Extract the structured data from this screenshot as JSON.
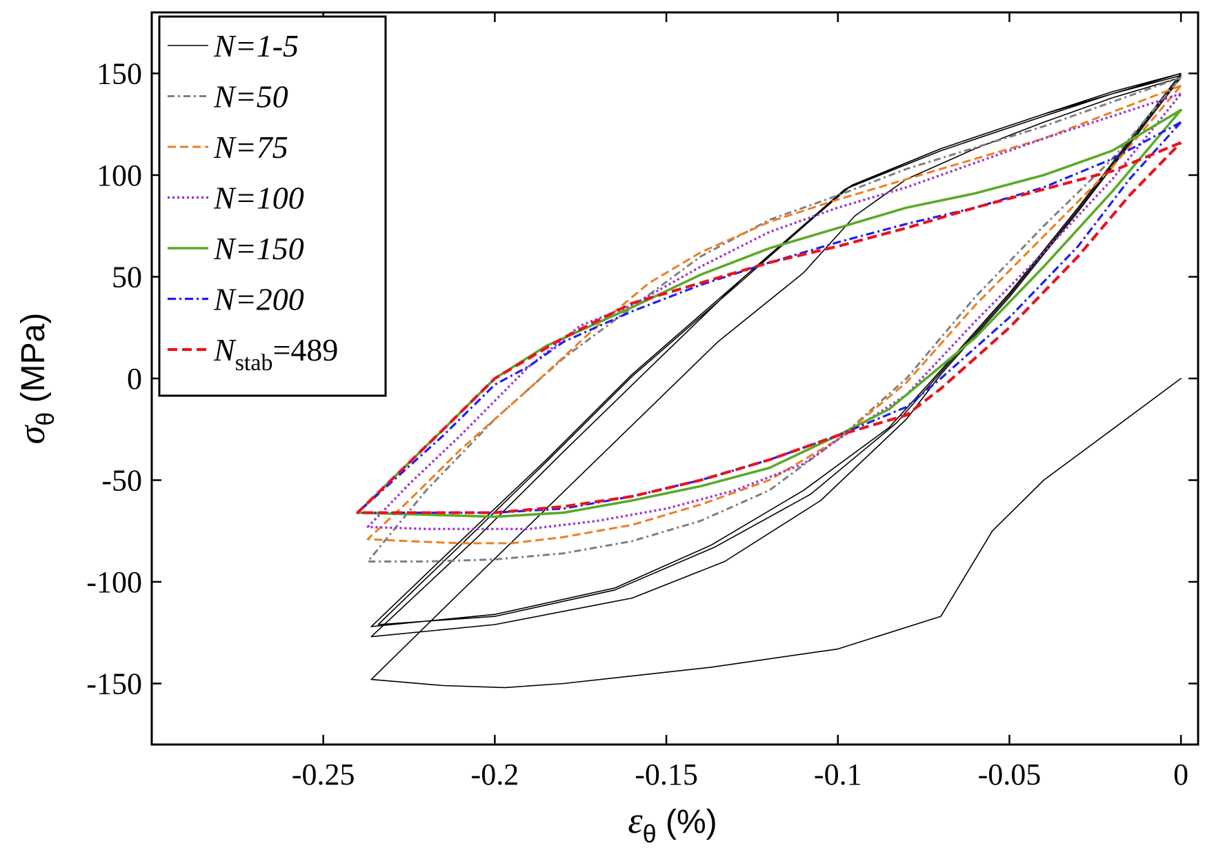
{
  "chart_data": {
    "type": "line",
    "title": "",
    "xlabel": {
      "symbol": "ε",
      "subscript": "θ",
      "unit": " (%)"
    },
    "ylabel": {
      "symbol": "σ",
      "subscript": "θ",
      "unit": " (MPa)"
    },
    "xlim": [
      -0.3,
      0.005
    ],
    "ylim": [
      -180,
      180
    ],
    "xticks": [
      -0.25,
      -0.2,
      -0.15,
      -0.1,
      -0.05,
      0
    ],
    "xtick_labels": [
      "-0.25",
      "-0.2",
      "-0.15",
      "-0.1",
      "-0.05",
      "0"
    ],
    "yticks": [
      -150,
      -100,
      -50,
      0,
      50,
      100,
      150
    ],
    "ytick_labels": [
      "-150",
      "-100",
      "-50",
      "0",
      "50",
      "100",
      "150"
    ],
    "grid": false,
    "legend_position": "top-left",
    "series": [
      {
        "name": "N=1-5",
        "label_main": "N",
        "label_sub": "",
        "label_rest": "=1-5",
        "color": "#000000",
        "dash": "",
        "width": 1.6,
        "segments": [
          [
            [
              0,
              0
            ],
            [
              -0.02,
              -25
            ],
            [
              -0.04,
              -50
            ],
            [
              -0.055,
              -75
            ],
            [
              -0.07,
              -117
            ],
            [
              -0.1,
              -133
            ],
            [
              -0.137,
              -142
            ],
            [
              -0.18,
              -150
            ],
            [
              -0.197,
              -152
            ],
            [
              -0.215,
              -151
            ],
            [
              -0.236,
              -148
            ],
            [
              -0.21,
              -105
            ],
            [
              -0.185,
              -64
            ],
            [
              -0.16,
              -23
            ],
            [
              -0.135,
              18
            ],
            [
              -0.11,
              52
            ],
            [
              -0.095,
              80
            ],
            [
              -0.08,
              98
            ],
            [
              -0.06,
              113
            ],
            [
              -0.04,
              126
            ],
            [
              -0.02,
              138
            ],
            [
              0,
              148
            ],
            [
              -0.01,
              126
            ],
            [
              -0.03,
              82
            ],
            [
              -0.05,
              40
            ],
            [
              -0.07,
              2
            ],
            [
              -0.08,
              -20
            ],
            [
              -0.105,
              -60
            ],
            [
              -0.133,
              -90
            ],
            [
              -0.16,
              -108
            ],
            [
              -0.2,
              -121
            ],
            [
              -0.236,
              -127
            ],
            [
              -0.205,
              -78
            ],
            [
              -0.18,
              -36
            ],
            [
              -0.155,
              5
            ],
            [
              -0.128,
              49
            ],
            [
              -0.096,
              95
            ],
            [
              -0.07,
              113
            ],
            [
              -0.04,
              130
            ],
            [
              -0.02,
              141
            ],
            [
              0,
              150
            ],
            [
              -0.01,
              128
            ],
            [
              -0.03,
              84
            ],
            [
              -0.05,
              42
            ],
            [
              -0.07,
              4
            ],
            [
              -0.085,
              -24
            ],
            [
              -0.11,
              -55
            ],
            [
              -0.137,
              -82
            ],
            [
              -0.165,
              -103
            ],
            [
              -0.2,
              -116
            ],
            [
              -0.236,
              -122
            ],
            [
              -0.21,
              -80
            ],
            [
              -0.185,
              -40
            ],
            [
              -0.16,
              2
            ],
            [
              -0.13,
              46
            ],
            [
              -0.098,
              93
            ],
            [
              -0.07,
              112
            ],
            [
              -0.04,
              129
            ],
            [
              -0.02,
              140
            ],
            [
              0,
              149
            ],
            [
              -0.01,
              127
            ],
            [
              -0.03,
              83
            ],
            [
              -0.05,
              41
            ],
            [
              -0.07,
              3
            ],
            [
              -0.083,
              -22
            ],
            [
              -0.108,
              -57
            ],
            [
              -0.136,
              -83
            ],
            [
              -0.165,
              -104
            ],
            [
              -0.2,
              -117
            ],
            [
              -0.234,
              -121
            ],
            [
              -0.21,
              -82
            ],
            [
              -0.185,
              -41
            ],
            [
              -0.16,
              1
            ],
            [
              -0.13,
              45
            ],
            [
              -0.097,
              94
            ],
            [
              -0.07,
              113
            ],
            [
              -0.04,
              130
            ],
            [
              0,
              150
            ]
          ]
        ]
      },
      {
        "name": "N=50",
        "label_main": "N",
        "label_sub": "",
        "label_rest": "=50",
        "color": "#7f7f7f",
        "dash": "10,5,3,5",
        "width": 3,
        "segments": [
          [
            [
              0,
              148
            ],
            [
              -0.04,
              124
            ],
            [
              -0.08,
              103
            ],
            [
              -0.1,
              90
            ],
            [
              -0.12,
              78
            ],
            [
              -0.14,
              60
            ],
            [
              -0.16,
              35
            ],
            [
              -0.18,
              10
            ],
            [
              -0.2,
              -20
            ],
            [
              -0.22,
              -55
            ],
            [
              -0.237,
              -90
            ],
            [
              -0.22,
              -90
            ],
            [
              -0.2,
              -89
            ],
            [
              -0.18,
              -86
            ],
            [
              -0.16,
              -80
            ],
            [
              -0.14,
              -70
            ],
            [
              -0.12,
              -55
            ],
            [
              -0.1,
              -30
            ],
            [
              -0.08,
              0
            ],
            [
              -0.06,
              40
            ],
            [
              -0.04,
              75
            ],
            [
              -0.02,
              108
            ],
            [
              0,
              148
            ]
          ]
        ]
      },
      {
        "name": "N=75",
        "label_main": "N",
        "label_sub": "",
        "label_rest": "=75",
        "color": "#f07d1e",
        "dash": "12,6",
        "width": 3,
        "segments": [
          [
            [
              0,
              144
            ],
            [
              -0.04,
              118
            ],
            [
              -0.08,
              98
            ],
            [
              -0.1,
              88
            ],
            [
              -0.12,
              77
            ],
            [
              -0.14,
              62
            ],
            [
              -0.155,
              47
            ],
            [
              -0.17,
              26
            ],
            [
              -0.19,
              -5
            ],
            [
              -0.21,
              -35
            ],
            [
              -0.225,
              -60
            ],
            [
              -0.237,
              -79
            ],
            [
              -0.225,
              -80
            ],
            [
              -0.21,
              -81
            ],
            [
              -0.195,
              -81
            ],
            [
              -0.18,
              -78
            ],
            [
              -0.16,
              -72
            ],
            [
              -0.14,
              -62
            ],
            [
              -0.12,
              -50
            ],
            [
              -0.1,
              -30
            ],
            [
              -0.08,
              -2
            ],
            [
              -0.06,
              36
            ],
            [
              -0.04,
              70
            ],
            [
              -0.02,
              104
            ],
            [
              0,
              144
            ]
          ]
        ]
      },
      {
        "name": "N=100",
        "label_main": "N",
        "label_sub": "",
        "label_rest": "=100",
        "color": "#9b30d9",
        "dash": "3,4",
        "width": 3.4,
        "segments": [
          [
            [
              0,
              140
            ],
            [
              -0.04,
              118
            ],
            [
              -0.08,
              94
            ],
            [
              -0.1,
              84
            ],
            [
              -0.12,
              72
            ],
            [
              -0.14,
              55
            ],
            [
              -0.16,
              36
            ],
            [
              -0.175,
              26
            ],
            [
              -0.19,
              6
            ],
            [
              -0.21,
              -28
            ],
            [
              -0.225,
              -52
            ],
            [
              -0.237,
              -73
            ],
            [
              -0.22,
              -74
            ],
            [
              -0.2,
              -74
            ],
            [
              -0.19,
              -74
            ],
            [
              -0.17,
              -70
            ],
            [
              -0.15,
              -64
            ],
            [
              -0.13,
              -55
            ],
            [
              -0.11,
              -42
            ],
            [
              -0.1,
              -30
            ],
            [
              -0.08,
              -8
            ],
            [
              -0.06,
              28
            ],
            [
              -0.04,
              62
            ],
            [
              -0.02,
              98
            ],
            [
              0,
              140
            ]
          ]
        ]
      },
      {
        "name": "N=150",
        "label_main": "N",
        "label_sub": "",
        "label_rest": "=150",
        "color": "#5aaa28",
        "dash": "",
        "width": 3.6,
        "segments": [
          [
            [
              0,
              132
            ],
            [
              -0.02,
              112
            ],
            [
              -0.04,
              100
            ],
            [
              -0.06,
              91
            ],
            [
              -0.08,
              84
            ],
            [
              -0.1,
              74
            ],
            [
              -0.12,
              64
            ],
            [
              -0.14,
              51
            ],
            [
              -0.16,
              35
            ],
            [
              -0.185,
              16
            ],
            [
              -0.2,
              0
            ],
            [
              -0.215,
              -25
            ],
            [
              -0.24,
              -66
            ],
            [
              -0.22,
              -67
            ],
            [
              -0.2,
              -68
            ],
            [
              -0.18,
              -66
            ],
            [
              -0.16,
              -60
            ],
            [
              -0.14,
              -53
            ],
            [
              -0.12,
              -44
            ],
            [
              -0.1,
              -28
            ],
            [
              -0.085,
              -15
            ],
            [
              -0.06,
              20
            ],
            [
              -0.04,
              55
            ],
            [
              -0.02,
              92
            ],
            [
              0,
              132
            ]
          ]
        ]
      },
      {
        "name": "N=200",
        "label_main": "N",
        "label_sub": "",
        "label_rest": "=200",
        "color": "#1e1ef5",
        "dash": "12,5,3,5",
        "width": 3.2,
        "segments": [
          [
            [
              0,
              126
            ],
            [
              -0.02,
              108
            ],
            [
              -0.04,
              94
            ],
            [
              -0.06,
              84
            ],
            [
              -0.08,
              76
            ],
            [
              -0.1,
              67
            ],
            [
              -0.12,
              57
            ],
            [
              -0.14,
              46
            ],
            [
              -0.16,
              33
            ],
            [
              -0.18,
              18
            ],
            [
              -0.19,
              6
            ],
            [
              -0.2,
              -3
            ],
            [
              -0.215,
              -28
            ],
            [
              -0.24,
              -66
            ],
            [
              -0.22,
              -66
            ],
            [
              -0.2,
              -66
            ],
            [
              -0.18,
              -64
            ],
            [
              -0.16,
              -58
            ],
            [
              -0.14,
              -50
            ],
            [
              -0.12,
              -40
            ],
            [
              -0.1,
              -28
            ],
            [
              -0.08,
              -14
            ],
            [
              -0.07,
              0
            ],
            [
              -0.05,
              30
            ],
            [
              -0.03,
              65
            ],
            [
              -0.015,
              98
            ],
            [
              0,
              126
            ]
          ]
        ]
      },
      {
        "name": "Nstab=489",
        "label_main": "N",
        "label_sub": "stab",
        "label_rest": "=489",
        "color": "#e8141e",
        "dash": "14,7",
        "width": 4.2,
        "segments": [
          [
            [
              0,
              116
            ],
            [
              -0.02,
              102
            ],
            [
              -0.04,
              93
            ],
            [
              -0.06,
              84
            ],
            [
              -0.08,
              74
            ],
            [
              -0.1,
              65
            ],
            [
              -0.12,
              57
            ],
            [
              -0.14,
              47
            ],
            [
              -0.16,
              37
            ],
            [
              -0.18,
              20
            ],
            [
              -0.2,
              0
            ],
            [
              -0.215,
              -25
            ],
            [
              -0.24,
              -66
            ],
            [
              -0.22,
              -66
            ],
            [
              -0.2,
              -66
            ],
            [
              -0.18,
              -63
            ],
            [
              -0.16,
              -58
            ],
            [
              -0.14,
              -50
            ],
            [
              -0.12,
              -40
            ],
            [
              -0.1,
              -28
            ],
            [
              -0.08,
              -18
            ],
            [
              -0.07,
              -5
            ],
            [
              -0.05,
              25
            ],
            [
              -0.03,
              60
            ],
            [
              -0.015,
              90
            ],
            [
              0,
              116
            ]
          ]
        ]
      }
    ]
  }
}
